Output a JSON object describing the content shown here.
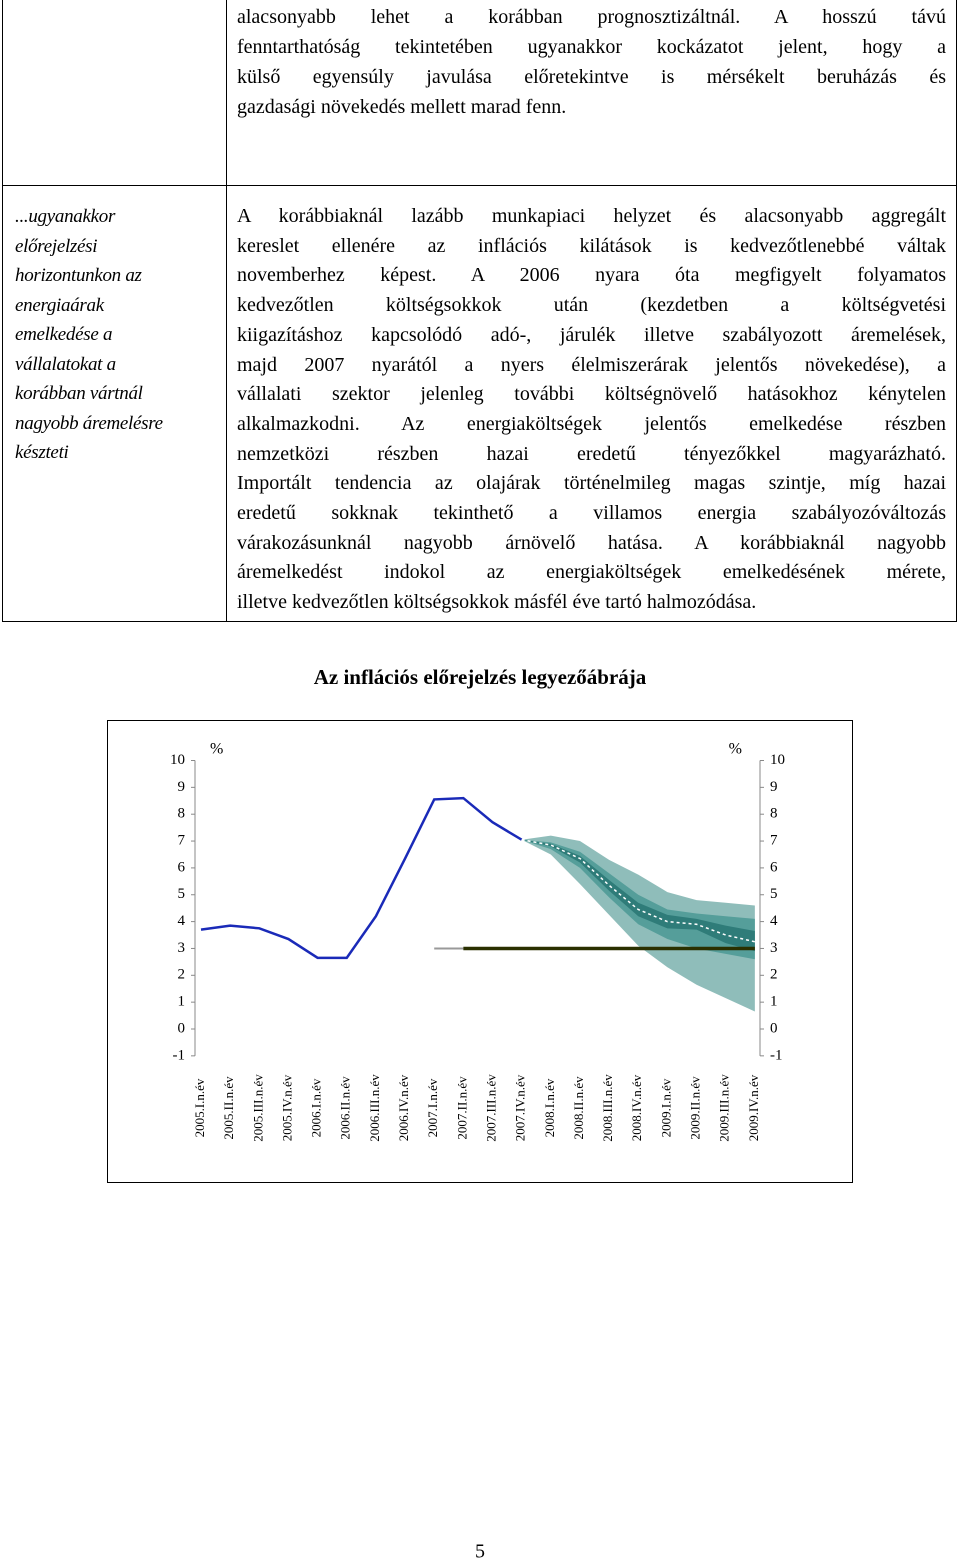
{
  "top_text": {
    "lines": [
      "alacsonyabb lehet a korábban prognosztizáltnál. A hosszú távú",
      "fenntarthatóság tekintetében ugyanakkor kockázatot jelent, hogy a",
      "külső egyensúly javulása előretekintve is mérsékelt beruházás és",
      "gazdasági növekedés mellett marad fenn."
    ]
  },
  "side_note": {
    "lines": [
      "...ugyanakkor",
      "előrejelzési",
      "horizontunkon az",
      "energiaárak",
      "emelkedése a",
      "vállalatokat a",
      "korábban vártnál",
      "nagyobb áremelésre",
      "készteti"
    ]
  },
  "body_text": {
    "lines": [
      "A korábbiaknál lazább munkapiaci helyzet és alacsonyabb aggregált",
      "kereslet ellenére az inflációs kilátások is kedvezőtlenebbé váltak",
      "novemberhez képest. A 2006 nyara óta megfigyelt folyamatos",
      "kedvezőtlen költségsokkok után (kezdetben a költségvetési",
      "kiigazításhoz kapcsolódó adó-, járulék illetve szabályozott áremelések,",
      "majd 2007 nyarától a nyers élelmiszerárak jelentős növekedése), a",
      "vállalati szektor jelenleg további költségnövelő hatásokhoz kénytelen",
      "alkalmazkodni. Az energiaköltségek jelentős emelkedése részben",
      "nemzetközi részben hazai eredetű tényezőkkel magyarázható.",
      "Importált tendencia az olajárak történelmileg magas szintje, míg hazai",
      "eredetű sokknak tekinthető a villamos energia szabályozóváltozás",
      "várakozásunknál nagyobb árnövelő hatása. A korábbiaknál nagyobb",
      "áremelkedést indokol az energiaköltségek emelkedésének mérete,",
      "illetve kedvezőtlen költségsokkok másfél éve tartó halmozódása."
    ]
  },
  "page_number": "5",
  "chart_data": {
    "type": "fan",
    "title": "Az inflációs előrejelzés legyezőábrája",
    "y_label": "%",
    "y2_label": "%",
    "categories": [
      "2005.I.n.év",
      "2005.II.n.év",
      "2005.III.n.év",
      "2005.IV.n.év",
      "2006.I.n.év",
      "2006.II.n.év",
      "2006.III.n.év",
      "2006.IV.n.év",
      "2007.I.n.év",
      "2007.II.n.év",
      "2007.III.n.év",
      "2007.IV.n.év",
      "2008.I.n.év",
      "2008.II.n.év",
      "2008.III.n.év",
      "2008.IV.n.év",
      "2009.I.n.év",
      "2009.II.n.év",
      "2009.III.n.év",
      "2009.IV.n.év"
    ],
    "ylim": [
      -1,
      10
    ],
    "yticks": [
      -1,
      0,
      1,
      2,
      3,
      4,
      5,
      6,
      7,
      8,
      9,
      10
    ],
    "y2lim": [
      -1,
      10
    ],
    "y2ticks": [
      -1,
      0,
      1,
      2,
      3,
      4,
      5,
      6,
      7,
      8,
      9,
      10
    ],
    "bands": [
      {
        "color": "#8fbdba",
        "upper": [
          null,
          null,
          null,
          null,
          null,
          null,
          null,
          null,
          null,
          null,
          null,
          7.05,
          7.2,
          7.0,
          6.3,
          5.75,
          5.1,
          4.8,
          4.7,
          4.6
        ],
        "lower": [
          null,
          null,
          null,
          null,
          null,
          null,
          null,
          null,
          null,
          null,
          null,
          7.05,
          6.5,
          5.4,
          4.25,
          3.1,
          2.3,
          1.65,
          1.15,
          0.65
        ]
      },
      {
        "color": "#559e9a",
        "upper": [
          null,
          null,
          null,
          null,
          null,
          null,
          null,
          null,
          null,
          null,
          null,
          7.05,
          6.95,
          6.6,
          5.8,
          5.0,
          4.45,
          4.3,
          4.2,
          4.1
        ],
        "lower": [
          null,
          null,
          null,
          null,
          null,
          null,
          null,
          null,
          null,
          null,
          null,
          7.05,
          6.7,
          6.0,
          4.9,
          3.9,
          3.35,
          3.0,
          2.8,
          2.6
        ]
      },
      {
        "color": "#2f7c79",
        "upper": [
          null,
          null,
          null,
          null,
          null,
          null,
          null,
          null,
          null,
          null,
          null,
          7.05,
          6.9,
          6.45,
          5.55,
          4.7,
          4.25,
          4.1,
          3.85,
          3.65
        ],
        "lower": [
          null,
          null,
          null,
          null,
          null,
          null,
          null,
          null,
          null,
          null,
          null,
          7.05,
          6.8,
          6.2,
          5.15,
          4.2,
          3.75,
          3.7,
          3.2,
          2.9
        ]
      }
    ],
    "series": [
      {
        "color": "#999999",
        "width": 2,
        "values": [
          null,
          null,
          null,
          null,
          null,
          null,
          null,
          null,
          3,
          3,
          null,
          null,
          null,
          null,
          null,
          null,
          null,
          null,
          null,
          null
        ]
      },
      {
        "color": "#2a3000",
        "width": 3.5,
        "values": [
          null,
          null,
          null,
          null,
          null,
          null,
          null,
          null,
          null,
          3,
          3,
          3,
          3,
          3,
          3,
          3,
          3,
          3,
          3,
          3
        ]
      },
      {
        "color": "#1a2ab8",
        "width": 2.5,
        "values": [
          3.7,
          3.85,
          3.75,
          3.35,
          2.65,
          2.65,
          4.2,
          6.35,
          8.55,
          8.6,
          7.7,
          7.05,
          null,
          null,
          null,
          null,
          null,
          null,
          null,
          null
        ]
      },
      {
        "color": "#ffffff",
        "width": 1.5,
        "dash": "3,3",
        "values": [
          null,
          null,
          null,
          null,
          null,
          null,
          null,
          null,
          null,
          null,
          null,
          7.05,
          6.85,
          6.35,
          5.35,
          4.45,
          4.0,
          3.9,
          3.5,
          3.25
        ]
      }
    ]
  }
}
